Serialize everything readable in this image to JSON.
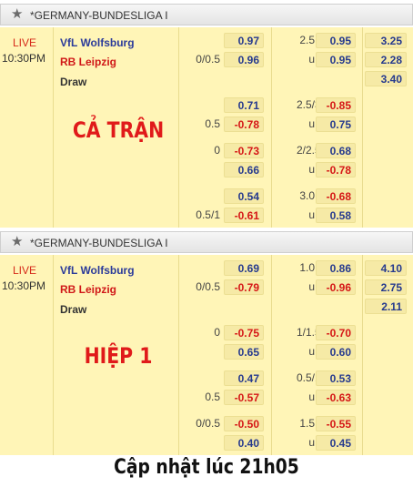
{
  "panels": [
    {
      "league": "*GERMANY-BUNDESLIGA I",
      "status": "LIVE",
      "time": "10:30PM",
      "home": "VfL Wolfsburg",
      "away": "RB Leipzig",
      "draw": "Draw",
      "label": "CẢ TRẬN",
      "rows": [
        {
          "hdp_top": "",
          "ah_top": "0.97",
          "ou_line_top": "2.5",
          "ou_top": "0.95",
          "x12_top": "3.25",
          "hdp_bot": "0/0.5",
          "ah_bot": "0.96",
          "ou_line_bot": "u",
          "ou_bot": "0.95",
          "x12_bot": "2.28",
          "x12_draw": "3.40"
        },
        {
          "hdp_top": "",
          "ah_top": "0.71",
          "ou_line_top": "2.5/3",
          "ou_top": "-0.85",
          "hdp_bot": "0.5",
          "ah_bot": "-0.78",
          "ou_line_bot": "u",
          "ou_bot": "0.75"
        },
        {
          "hdp_top": "0",
          "ah_top": "-0.73",
          "ou_line_top": "2/2.5",
          "ou_top": "0.68",
          "hdp_bot": "",
          "ah_bot": "0.66",
          "ou_line_bot": "u",
          "ou_bot": "-0.78"
        },
        {
          "hdp_top": "",
          "ah_top": "0.54",
          "ou_line_top": "3.0",
          "ou_top": "-0.68",
          "hdp_bot": "0.5/1",
          "ah_bot": "-0.61",
          "ou_line_bot": "u",
          "ou_bot": "0.58"
        }
      ]
    },
    {
      "league": "*GERMANY-BUNDESLIGA I",
      "status": "LIVE",
      "time": "10:30PM",
      "home": "VfL Wolfsburg",
      "away": "RB Leipzig",
      "draw": "Draw",
      "label": "HIỆP 1",
      "rows": [
        {
          "hdp_top": "",
          "ah_top": "0.69",
          "ou_line_top": "1.0",
          "ou_top": "0.86",
          "x12_top": "4.10",
          "hdp_bot": "0/0.5",
          "ah_bot": "-0.79",
          "ou_line_bot": "u",
          "ou_bot": "-0.96",
          "x12_bot": "2.75",
          "x12_draw": "2.11"
        },
        {
          "hdp_top": "0",
          "ah_top": "-0.75",
          "ou_line_top": "1/1.5",
          "ou_top": "-0.70",
          "hdp_bot": "",
          "ah_bot": "0.65",
          "ou_line_bot": "u",
          "ou_bot": "0.60"
        },
        {
          "hdp_top": "",
          "ah_top": "0.47",
          "ou_line_top": "0.5/1",
          "ou_top": "0.53",
          "hdp_bot": "0.5",
          "ah_bot": "-0.57",
          "ou_line_bot": "u",
          "ou_bot": "-0.63"
        },
        {
          "hdp_top": "0/0.5",
          "ah_top": "-0.50",
          "ou_line_top": "1.5",
          "ou_top": "-0.55",
          "hdp_bot": "",
          "ah_bot": "0.40",
          "ou_line_bot": "u",
          "ou_bot": "0.45"
        }
      ]
    }
  ],
  "footer": "Cập nhật lúc 21h05",
  "colors": {
    "positive": "#263a8e",
    "negative": "#d51616",
    "background": "#fff5b7",
    "label": "#e01a1a"
  }
}
